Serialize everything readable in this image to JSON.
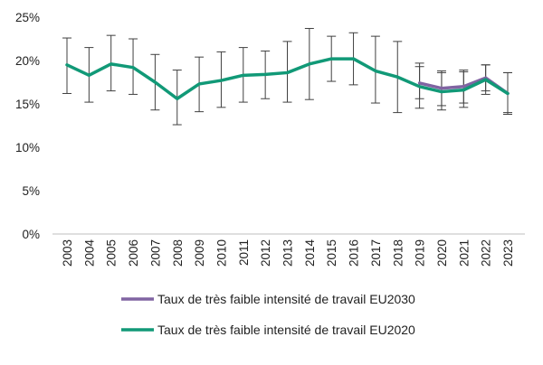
{
  "chart_data": {
    "type": "line",
    "x": [
      "2003",
      "2004",
      "2005",
      "2006",
      "2007",
      "2008",
      "2009",
      "2010",
      "2011",
      "2012",
      "2013",
      "2014",
      "2015",
      "2016",
      "2017",
      "2018",
      "2019",
      "2020",
      "2021",
      "2022",
      "2023"
    ],
    "ylim": [
      0,
      25
    ],
    "yticks": [
      0,
      5,
      10,
      15,
      20,
      25
    ],
    "ytick_labels": [
      "0%",
      "5%",
      "10%",
      "15%",
      "20%",
      "25%"
    ],
    "grid": false,
    "legend_position": "bottom",
    "series": [
      {
        "name": "Taux de très faible intensité de travail EU2030",
        "color": "#8064A2",
        "x": [
          "2019",
          "2020",
          "2021",
          "2022",
          "2023"
        ],
        "values": [
          17.4,
          16.8,
          17.0,
          18.0,
          16.2
        ],
        "error_low": [
          15.6,
          14.8,
          15.1,
          16.5,
          14.0
        ],
        "error_high": [
          19.3,
          18.8,
          18.9,
          19.5,
          18.6
        ]
      },
      {
        "name": "Taux de très faible intensité de travail EU2020",
        "color": "#119977",
        "x": [
          "2003",
          "2004",
          "2005",
          "2006",
          "2007",
          "2008",
          "2009",
          "2010",
          "2011",
          "2012",
          "2013",
          "2014",
          "2015",
          "2016",
          "2017",
          "2018",
          "2019",
          "2020",
          "2021",
          "2022",
          "2023"
        ],
        "values": [
          19.5,
          18.3,
          19.6,
          19.2,
          17.5,
          15.6,
          17.3,
          17.7,
          18.3,
          18.4,
          18.6,
          19.6,
          20.2,
          20.2,
          18.8,
          18.1,
          17.0,
          16.4,
          16.6,
          17.8,
          16.2
        ],
        "error_low": [
          16.2,
          15.2,
          16.5,
          16.1,
          14.3,
          12.6,
          14.1,
          14.6,
          15.2,
          15.6,
          15.2,
          15.5,
          17.6,
          17.2,
          15.1,
          14.0,
          14.5,
          14.3,
          14.6,
          16.1,
          13.8
        ],
        "error_high": [
          22.6,
          21.5,
          22.9,
          22.5,
          20.7,
          18.9,
          20.4,
          21.0,
          21.5,
          21.1,
          22.2,
          23.7,
          22.8,
          23.2,
          22.8,
          22.2,
          19.7,
          18.6,
          18.7,
          19.5,
          18.6
        ]
      }
    ]
  }
}
